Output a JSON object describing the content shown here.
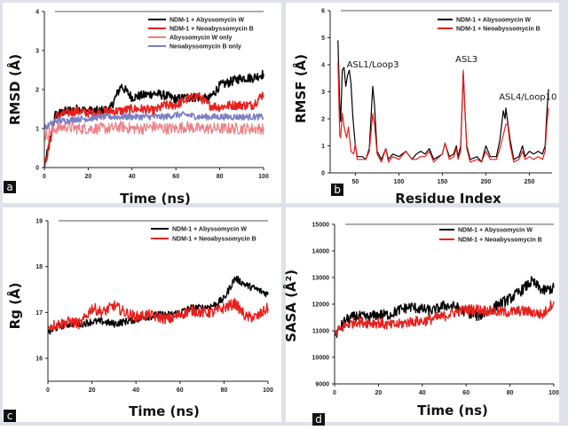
{
  "chart_data": [
    {
      "panel": "a",
      "type": "line",
      "xlabel": "Time (ns)",
      "ylabel": "RMSD (Å)",
      "xlim": [
        0,
        100
      ],
      "ylim": [
        0,
        4
      ],
      "xticks": [
        "0",
        "20",
        "40",
        "60",
        "80",
        "100"
      ],
      "yticks": [
        "0",
        "1",
        "2",
        "3",
        "4"
      ],
      "legend_position": "top-right",
      "x": [
        0,
        5,
        10,
        15,
        20,
        25,
        30,
        35,
        40,
        45,
        50,
        55,
        60,
        65,
        70,
        75,
        80,
        85,
        90,
        95,
        100
      ],
      "series": [
        {
          "name": "NDM-1 + Abyssomycin W",
          "color": "#000000",
          "noise": 0.12,
          "values": [
            0,
            1.35,
            1.45,
            1.5,
            1.45,
            1.45,
            1.5,
            2.1,
            1.8,
            1.85,
            1.9,
            1.85,
            1.75,
            1.8,
            1.8,
            1.75,
            2.1,
            2.2,
            2.3,
            2.3,
            2.4
          ]
        },
        {
          "name": "NDM-1 + Neoabyssomycin B",
          "color": "#e8201c",
          "noise": 0.12,
          "values": [
            0,
            1.3,
            1.4,
            1.45,
            1.4,
            1.4,
            1.45,
            1.45,
            1.5,
            1.5,
            1.45,
            1.6,
            1.6,
            1.75,
            1.85,
            1.6,
            1.55,
            1.6,
            1.6,
            1.6,
            1.9
          ]
        },
        {
          "name": "Abyssomycin W only",
          "color": "#ee7f86",
          "noise": 0.15,
          "values": [
            0.8,
            1.0,
            1.05,
            1.0,
            1.0,
            1.0,
            1.0,
            1.05,
            1.0,
            1.0,
            1.05,
            1.0,
            1.0,
            1.05,
            1.0,
            1.0,
            1.0,
            1.0,
            1.0,
            1.0,
            1.0
          ]
        },
        {
          "name": "Neoabyssomycin B only",
          "color": "#7b7fc4",
          "noise": 0.08,
          "values": [
            1.0,
            1.2,
            1.2,
            1.25,
            1.25,
            1.3,
            1.3,
            1.3,
            1.3,
            1.3,
            1.3,
            1.3,
            1.35,
            1.35,
            1.3,
            1.3,
            1.3,
            1.3,
            1.3,
            1.3,
            1.3
          ]
        }
      ],
      "panel_label": "a"
    },
    {
      "panel": "b",
      "type": "line",
      "xlabel": "Residue Index",
      "ylabel": "RMSF (Å)",
      "xlim": [
        21,
        276
      ],
      "ylim": [
        0,
        6
      ],
      "xticks": [
        "50",
        "100",
        "150",
        "200",
        "250"
      ],
      "yticks": [
        "0",
        "1",
        "2",
        "3",
        "4",
        "5",
        "6"
      ],
      "legend_position": "top-right",
      "annotations": [
        {
          "text": "ASL1/Loop3",
          "x": 40,
          "y": 3.9
        },
        {
          "text": "ASL3",
          "x": 165,
          "y": 4.1
        },
        {
          "text": "ASL4/Loop10",
          "x": 215,
          "y": 2.7
        }
      ],
      "series": [
        {
          "name": "NDM-1 + Abyssomycin W",
          "color": "#000000",
          "points": [
            [
              30,
              4.9
            ],
            [
              32,
              2.5
            ],
            [
              33,
              1.9
            ],
            [
              35,
              3.8
            ],
            [
              37,
              3.9
            ],
            [
              39,
              3.2
            ],
            [
              41,
              3.6
            ],
            [
              43,
              3.8
            ],
            [
              45,
              3.3
            ],
            [
              47,
              2.1
            ],
            [
              50,
              1.0
            ],
            [
              52,
              0.6
            ],
            [
              58,
              0.6
            ],
            [
              62,
              0.5
            ],
            [
              66,
              0.9
            ],
            [
              70,
              3.2
            ],
            [
              72,
              2.5
            ],
            [
              75,
              0.8
            ],
            [
              80,
              0.5
            ],
            [
              85,
              0.9
            ],
            [
              88,
              0.5
            ],
            [
              93,
              0.7
            ],
            [
              100,
              0.6
            ],
            [
              108,
              0.8
            ],
            [
              115,
              0.5
            ],
            [
              120,
              0.7
            ],
            [
              125,
              0.8
            ],
            [
              130,
              0.7
            ],
            [
              135,
              0.9
            ],
            [
              140,
              0.5
            ],
            [
              150,
              0.7
            ],
            [
              153,
              1.1
            ],
            [
              158,
              0.6
            ],
            [
              163,
              0.7
            ],
            [
              166,
              1.0
            ],
            [
              168,
              0.6
            ],
            [
              171,
              1.0
            ],
            [
              174,
              3.7
            ],
            [
              176,
              2.2
            ],
            [
              178,
              1.0
            ],
            [
              182,
              0.5
            ],
            [
              190,
              0.6
            ],
            [
              195,
              0.4
            ],
            [
              200,
              1.0
            ],
            [
              205,
              0.6
            ],
            [
              212,
              0.6
            ],
            [
              216,
              1.2
            ],
            [
              220,
              2.3
            ],
            [
              222,
              2.0
            ],
            [
              223,
              2.4
            ],
            [
              225,
              1.9
            ],
            [
              228,
              1.2
            ],
            [
              232,
              0.5
            ],
            [
              238,
              0.6
            ],
            [
              242,
              1.0
            ],
            [
              245,
              0.6
            ],
            [
              250,
              0.8
            ],
            [
              255,
              0.7
            ],
            [
              260,
              0.8
            ],
            [
              265,
              0.7
            ],
            [
              268,
              1.0
            ],
            [
              270,
              2.2
            ],
            [
              272,
              3.1
            ]
          ]
        },
        {
          "name": "NDM-1 + Neoabyssomycin B",
          "color": "#e8201c",
          "points": [
            [
              30,
              4.1
            ],
            [
              32,
              1.4
            ],
            [
              33,
              1.3
            ],
            [
              35,
              2.2
            ],
            [
              37,
              1.7
            ],
            [
              40,
              1.3
            ],
            [
              42,
              1.7
            ],
            [
              45,
              0.8
            ],
            [
              48,
              0.7
            ],
            [
              50,
              1.1
            ],
            [
              52,
              0.5
            ],
            [
              58,
              0.5
            ],
            [
              62,
              0.5
            ],
            [
              66,
              0.8
            ],
            [
              70,
              2.2
            ],
            [
              72,
              1.8
            ],
            [
              75,
              0.7
            ],
            [
              80,
              0.4
            ],
            [
              85,
              0.9
            ],
            [
              88,
              0.4
            ],
            [
              93,
              0.6
            ],
            [
              100,
              0.5
            ],
            [
              108,
              0.8
            ],
            [
              115,
              0.5
            ],
            [
              120,
              0.5
            ],
            [
              125,
              0.6
            ],
            [
              130,
              0.6
            ],
            [
              135,
              0.8
            ],
            [
              140,
              0.4
            ],
            [
              150,
              0.7
            ],
            [
              153,
              1.1
            ],
            [
              158,
              0.5
            ],
            [
              163,
              0.6
            ],
            [
              166,
              0.9
            ],
            [
              168,
              0.5
            ],
            [
              171,
              0.8
            ],
            [
              174,
              3.8
            ],
            [
              176,
              2.3
            ],
            [
              178,
              0.9
            ],
            [
              182,
              0.4
            ],
            [
              190,
              0.5
            ],
            [
              195,
              0.4
            ],
            [
              200,
              0.8
            ],
            [
              205,
              0.5
            ],
            [
              212,
              0.5
            ],
            [
              216,
              0.9
            ],
            [
              220,
              1.4
            ],
            [
              223,
              1.8
            ],
            [
              225,
              1.8
            ],
            [
              228,
              1.0
            ],
            [
              232,
              0.4
            ],
            [
              238,
              0.5
            ],
            [
              242,
              0.8
            ],
            [
              245,
              0.5
            ],
            [
              250,
              0.6
            ],
            [
              255,
              0.5
            ],
            [
              260,
              0.6
            ],
            [
              265,
              0.5
            ],
            [
              268,
              0.8
            ],
            [
              270,
              1.8
            ],
            [
              272,
              2.4
            ]
          ]
        }
      ],
      "panel_label": "b"
    },
    {
      "panel": "c",
      "type": "line",
      "xlabel": "Time (ns)",
      "ylabel": "Rg (Å)",
      "xlim": [
        0,
        100
      ],
      "ylim": [
        15.5,
        19
      ],
      "xticks": [
        "0",
        "20",
        "40",
        "60",
        "80",
        "100"
      ],
      "yticks": [
        "16",
        "17",
        "18",
        "19"
      ],
      "legend_position": "top-right",
      "x": [
        0,
        5,
        10,
        15,
        20,
        25,
        30,
        35,
        40,
        45,
        50,
        55,
        60,
        65,
        70,
        75,
        80,
        85,
        90,
        95,
        100
      ],
      "series": [
        {
          "name": "NDM-1 + Abyssomycin W",
          "color": "#000000",
          "noise": 0.08,
          "values": [
            16.55,
            16.7,
            16.75,
            16.75,
            16.8,
            16.8,
            16.75,
            16.8,
            16.85,
            16.9,
            16.95,
            16.95,
            17.0,
            17.1,
            17.1,
            17.15,
            17.3,
            17.75,
            17.6,
            17.5,
            17.4
          ]
        },
        {
          "name": "NDM-1 + Neoabyssomycin B",
          "color": "#e8201c",
          "noise": 0.12,
          "values": [
            16.7,
            16.75,
            16.8,
            16.75,
            17.1,
            17.0,
            17.15,
            17.0,
            16.9,
            16.95,
            16.9,
            16.85,
            16.95,
            17.05,
            17.0,
            17.0,
            17.1,
            17.2,
            16.9,
            16.9,
            17.1
          ]
        }
      ],
      "panel_label": "c"
    },
    {
      "panel": "d",
      "type": "line",
      "xlabel": "Time (ns)",
      "ylabel": "SASA (Å²)",
      "xlim": [
        0,
        100
      ],
      "ylim": [
        9000,
        15000
      ],
      "xticks": [
        "0",
        "20",
        "40",
        "60",
        "80",
        "100"
      ],
      "yticks": [
        "9000",
        "10000",
        "11000",
        "12000",
        "13000",
        "14000",
        "15000"
      ],
      "legend_position": "top-right",
      "x": [
        0,
        5,
        10,
        15,
        20,
        25,
        30,
        35,
        40,
        45,
        50,
        55,
        60,
        65,
        70,
        75,
        80,
        85,
        90,
        95,
        100
      ],
      "series": [
        {
          "name": "NDM-1 + Abyssomycin W",
          "color": "#000000",
          "noise": 200,
          "values": [
            10800,
            11400,
            11550,
            11500,
            11600,
            11600,
            11800,
            11900,
            11800,
            11750,
            11950,
            11900,
            11700,
            11550,
            11700,
            12000,
            12200,
            12500,
            12850,
            12500,
            12600
          ]
        },
        {
          "name": "NDM-1 + Neoabyssomycin B",
          "color": "#e8201c",
          "noise": 200,
          "values": [
            10900,
            11200,
            11350,
            11300,
            11300,
            11200,
            11250,
            11350,
            11350,
            11450,
            11550,
            11700,
            11800,
            11800,
            11750,
            11700,
            11700,
            11750,
            11700,
            11600,
            12100
          ]
        }
      ],
      "panel_label": "d"
    }
  ]
}
